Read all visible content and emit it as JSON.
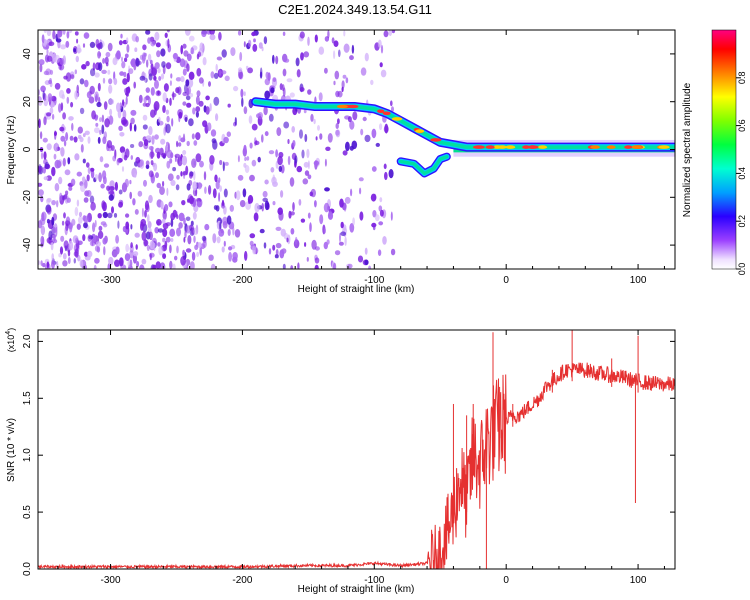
{
  "figure_title": "C2E1.2024.349.13.54.G11",
  "colors": {
    "snr_line": "#e53030",
    "speckle": "#8a2be2",
    "ridge": "#00e0a0",
    "ridge_core": "#ff3030"
  },
  "chart_data": [
    {
      "type": "heatmap",
      "title": "C2E1.2024.349.13.54.G11",
      "xlabel": "Height of straight line (km)",
      "ylabel": "Frequency (Hz)",
      "xlim": [
        -355,
        128
      ],
      "ylim": [
        -50,
        50
      ],
      "x_ticks": [
        -300,
        -200,
        -100,
        0,
        100
      ],
      "x_tick_labels": [
        "-300",
        "-200",
        "-100",
        "0",
        "100"
      ],
      "y_ticks": [
        -40,
        -20,
        0,
        20,
        40
      ],
      "y_tick_labels": [
        "-40",
        "-20",
        "0",
        "20",
        "40"
      ],
      "colorbar": {
        "label": "Normalized spectral amplitude",
        "range": [
          0,
          1
        ],
        "ticks": [
          0.0,
          0.2,
          0.4,
          0.6,
          0.8
        ],
        "tick_labels": [
          "0.0",
          "0.2",
          "0.4",
          "0.6",
          "0.8"
        ],
        "colormap": "rainbow (white-violet-blue-cyan-green-yellow-red-magenta)"
      },
      "noise_region": {
        "x_start": -355,
        "x_end": -85
      },
      "main_ridge": {
        "x": [
          -190,
          -175,
          -160,
          -145,
          -130,
          -115,
          -100,
          -90,
          -80,
          -70,
          -60,
          -50,
          -40,
          -30,
          -20,
          -10,
          0,
          20,
          40,
          60,
          80,
          100,
          128
        ],
        "y": [
          20,
          19,
          19,
          18,
          18,
          18,
          17,
          15,
          12,
          9,
          6,
          3,
          2,
          1,
          1,
          1,
          1,
          1,
          1,
          1,
          1,
          1,
          1
        ]
      },
      "lower_branch": {
        "x": [
          -80,
          -70,
          -62,
          -55,
          -50,
          -45
        ],
        "y": [
          -5,
          -6,
          -10,
          -8,
          -4,
          -3
        ]
      }
    },
    {
      "type": "line",
      "title": "",
      "xlabel": "Height of straight line (km)",
      "ylabel": "SNR (10 * v/v)",
      "y_scale_note": "(x10^4)",
      "xlim": [
        -355,
        128
      ],
      "ylim": [
        0,
        2.1
      ],
      "x_ticks": [
        -300,
        -200,
        -100,
        0,
        100
      ],
      "x_tick_labels": [
        "-300",
        "-200",
        "-100",
        "0",
        "100"
      ],
      "y_ticks": [
        0,
        0.5,
        1.0,
        1.5,
        2.0
      ],
      "y_tick_labels": [
        "0.0",
        "0.5",
        "1.0",
        "1.5",
        "2.0"
      ],
      "series": [
        {
          "x": [
            -355,
            -300,
            -250,
            -200,
            -150,
            -120,
            -100,
            -90,
            -80,
            -70,
            -60,
            -55,
            -50,
            -45,
            -40,
            -35,
            -30,
            -25,
            -20,
            -15,
            -10,
            -5,
            0,
            5,
            10,
            15,
            20,
            25,
            30,
            35,
            40,
            45,
            50,
            60,
            70,
            80,
            90,
            95,
            100,
            110,
            128
          ],
          "y": [
            0.02,
            0.02,
            0.02,
            0.02,
            0.03,
            0.03,
            0.05,
            0.04,
            0.03,
            0.04,
            0.05,
            0.08,
            0.15,
            0.3,
            0.5,
            0.8,
            0.6,
            1.0,
            0.9,
            1.1,
            1.2,
            1.25,
            1.3,
            1.35,
            1.35,
            1.4,
            1.45,
            1.5,
            1.6,
            1.65,
            1.7,
            1.75,
            1.75,
            1.75,
            1.72,
            1.7,
            1.68,
            1.66,
            1.65,
            1.63,
            1.62
          ]
        }
      ],
      "spikes": [
        {
          "x": -40,
          "y": 1.45
        },
        {
          "x": -30,
          "y": 1.35
        },
        {
          "x": -25,
          "y": 1.45
        },
        {
          "x": -10,
          "y": 2.08
        },
        {
          "x": -5,
          "y": 1.6
        },
        {
          "x": 5,
          "y": 1.45
        },
        {
          "x": 35,
          "y": 1.75
        },
        {
          "x": 50,
          "y": 2.1
        },
        {
          "x": 80,
          "y": 1.85
        },
        {
          "x": 100,
          "y": 2.05
        }
      ],
      "dips": [
        {
          "x": 98,
          "y": 0.58
        },
        {
          "x": -15,
          "y": 0.0
        }
      ]
    }
  ]
}
